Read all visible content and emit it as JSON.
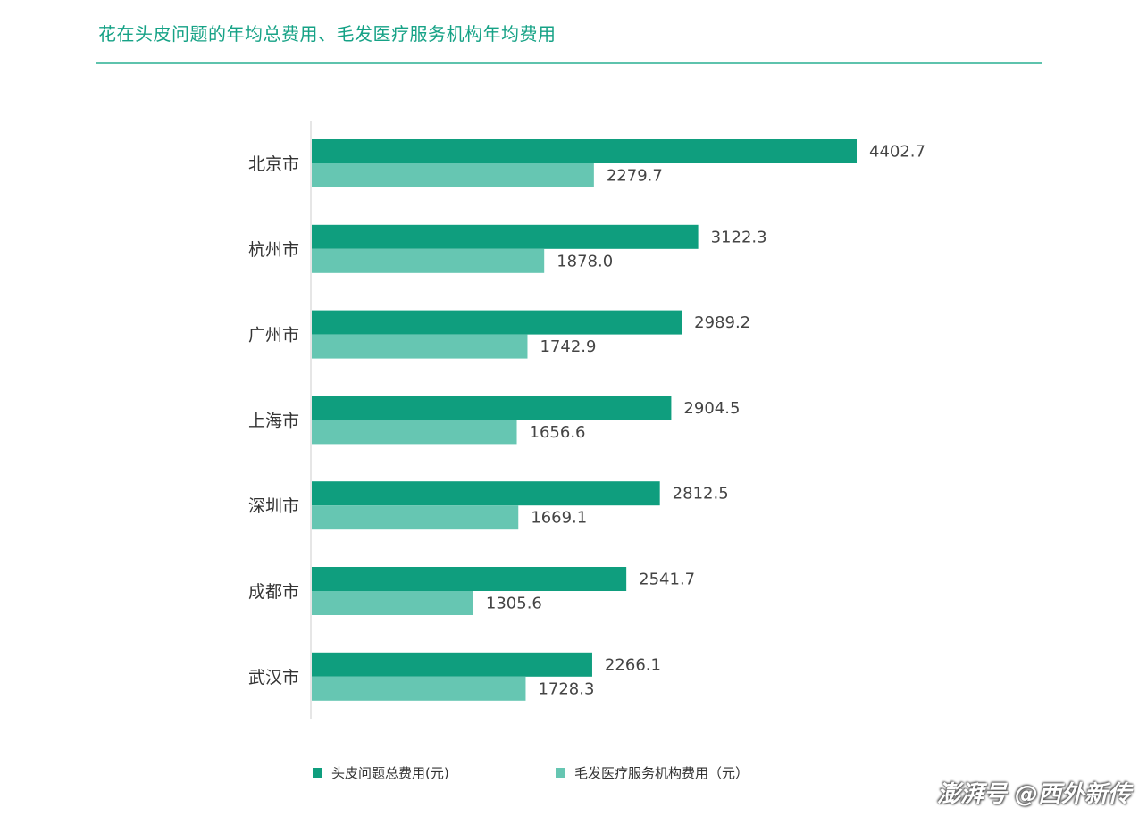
{
  "title": "花在头皮问题的年均总费用、毛发医疗服务机构年均费用",
  "colors": {
    "series1": "#0f9e7e",
    "series2": "#66c6b2",
    "accent": "#16a286"
  },
  "watermark": "澎湃号 @西外新传",
  "chart_data": {
    "type": "bar",
    "orientation": "horizontal",
    "categories": [
      "北京市",
      "杭州市",
      "广州市",
      "上海市",
      "深圳市",
      "成都市",
      "武汉市"
    ],
    "series": [
      {
        "name": "头皮问题总费用(元)",
        "values": [
          4402.7,
          3122.3,
          2989.2,
          2904.5,
          2812.5,
          2541.7,
          2266.1
        ]
      },
      {
        "name": "毛发医疗服务机构费用（元）",
        "values": [
          2279.7,
          1878.0,
          1742.9,
          1656.6,
          1669.1,
          1305.6,
          1728.3
        ]
      }
    ],
    "xlim": [
      0,
      5000
    ],
    "grid": false,
    "legend": "bottom"
  }
}
